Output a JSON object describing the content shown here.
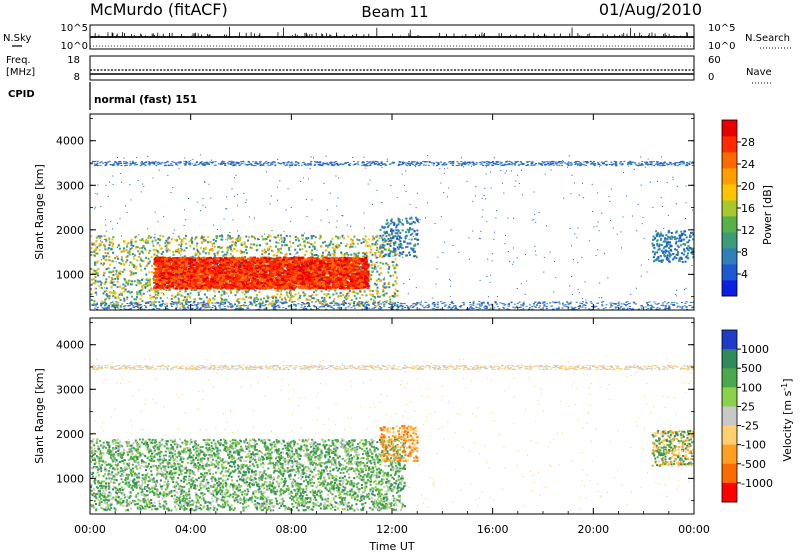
{
  "header": {
    "station": "McMurdo (fitACF)",
    "beam": "Beam 11",
    "date": "01/Aug/2010"
  },
  "top_panels": {
    "nsky_label": "N.Sky",
    "nsky_ticks": [
      "10^5",
      "10^0"
    ],
    "nsearch_label": "N.Search",
    "nsearch_ticks": [
      "10^5",
      "10^0"
    ],
    "freq_label_1": "Freq.",
    "freq_label_2": "[MHz]",
    "freq_ticks": [
      "18",
      "8"
    ],
    "nave_label": "Nave",
    "nave_ticks": [
      "60",
      "0"
    ],
    "cpid_label": "CPID",
    "cpid_text": "normal (fast) 151"
  },
  "chart_data": [
    {
      "type": "heatmap",
      "ylabel": "Slant Range [km]",
      "ytick_labels": [
        "1000",
        "2000",
        "3000",
        "4000"
      ],
      "ylim": [
        200,
        4600
      ],
      "xlim_hours": [
        0,
        24
      ],
      "colorbar": {
        "label": "Power [dB]",
        "tick_labels": [
          "4",
          "8",
          "12",
          "16",
          "20",
          "24",
          "28"
        ],
        "range": [
          0,
          32
        ],
        "colors": [
          "#0a1fe0",
          "#1d5ad2",
          "#2f7fb8",
          "#3d9b7a",
          "#56b248",
          "#a8c830",
          "#ffc400",
          "#ff9e00",
          "#ff6a00",
          "#ff2a00",
          "#e80000"
        ]
      },
      "echo_regions": [
        {
          "t0": 0.0,
          "t1": 12.2,
          "r_lo": 300,
          "r_hi": 1900,
          "level": "strong"
        },
        {
          "t0": 2.5,
          "t1": 11.0,
          "r_lo": 700,
          "r_hi": 1400,
          "level": "very-strong"
        },
        {
          "t0": 11.5,
          "t1": 13.0,
          "r_lo": 1400,
          "r_hi": 2300,
          "level": "moderate"
        },
        {
          "t0": 22.3,
          "t1": 24.0,
          "r_lo": 1300,
          "r_hi": 2000,
          "level": "moderate"
        },
        {
          "t0": 0.0,
          "t1": 24.0,
          "r_lo": 3450,
          "r_hi": 3550,
          "level": "weak"
        },
        {
          "t0": 0.0,
          "t1": 24.0,
          "r_lo": 200,
          "r_hi": 400,
          "level": "weak"
        }
      ]
    },
    {
      "type": "heatmap",
      "ylabel": "Slant Range [km]",
      "ytick_labels": [
        "1000",
        "2000",
        "3000",
        "4000"
      ],
      "ylim": [
        200,
        4600
      ],
      "xlabel": "Time UT",
      "xtick_labels": [
        "00:00",
        "04:00",
        "08:00",
        "12:00",
        "16:00",
        "20:00",
        "00:00"
      ],
      "xlim_hours": [
        0,
        24
      ],
      "colorbar": {
        "label": "Velocity [m s^-1]",
        "label_text": "Velocity [m s",
        "label_sup": "-1",
        "label_end": "]",
        "tick_labels": [
          "1000",
          "500",
          "100",
          "25",
          "-25",
          "-100",
          "-500",
          "-1000"
        ],
        "colors": [
          "#1e3cc8",
          "#2e8a5a",
          "#4ca84c",
          "#8ad24a",
          "#c8c8c8",
          "#ffd070",
          "#ffa020",
          "#ff6a00",
          "#ff0000"
        ]
      },
      "echo_regions": [
        {
          "t0": 0.0,
          "t1": 12.5,
          "r_lo": 300,
          "r_hi": 1900,
          "level": "green"
        },
        {
          "t0": 11.5,
          "t1": 13.0,
          "r_lo": 1400,
          "r_hi": 2200,
          "level": "orange"
        },
        {
          "t0": 22.3,
          "t1": 24.0,
          "r_lo": 1300,
          "r_hi": 2100,
          "level": "green-orange"
        },
        {
          "t0": 0.0,
          "t1": 24.0,
          "r_lo": 3450,
          "r_hi": 3550,
          "level": "weak"
        }
      ]
    }
  ]
}
